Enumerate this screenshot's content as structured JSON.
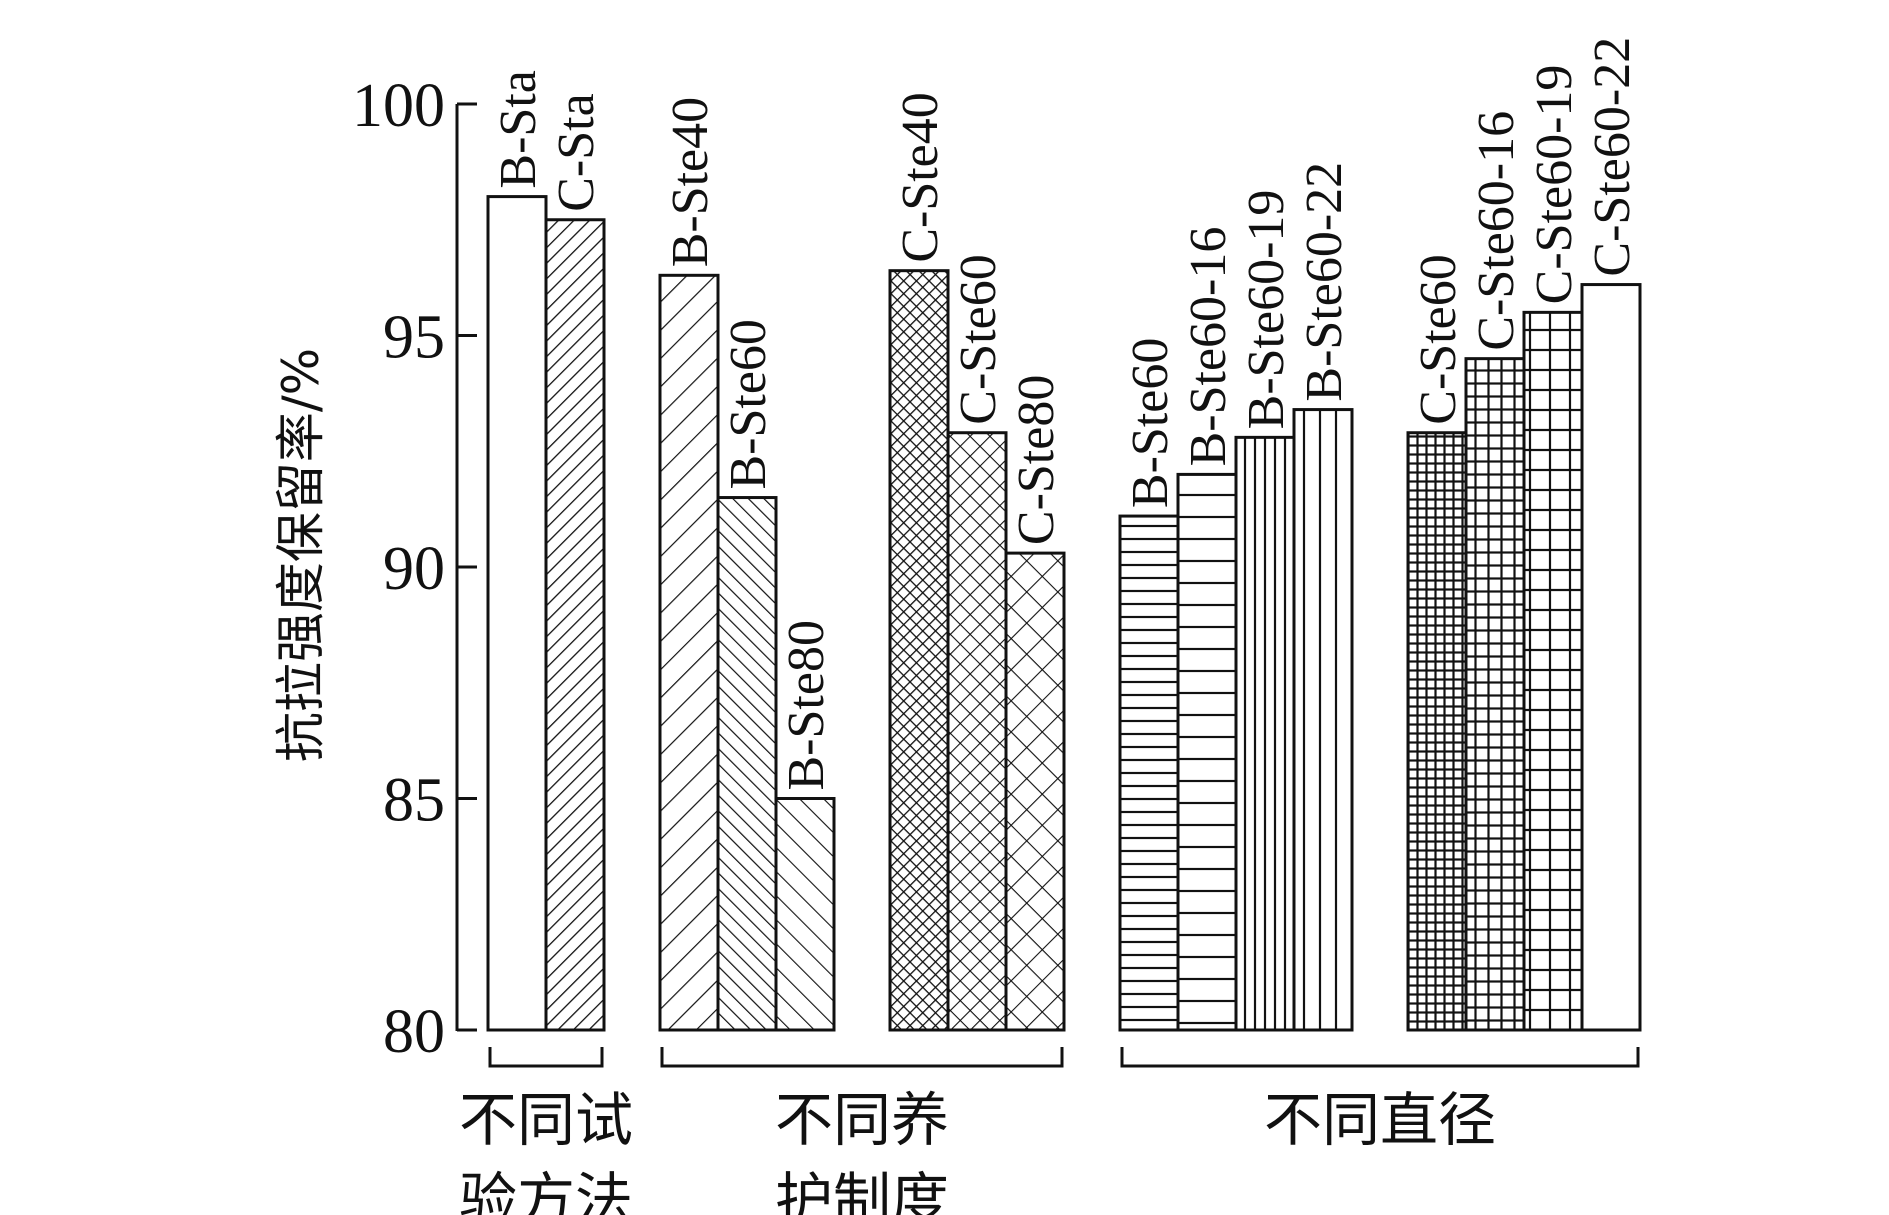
{
  "chart_data": {
    "type": "bar",
    "title": "",
    "xlabel": "",
    "ylabel": "抗拉强度保留率/%",
    "ylim": [
      80,
      100
    ],
    "yticks": [
      80,
      85,
      90,
      95,
      100
    ],
    "grid": false,
    "groups": [
      {
        "label_lines": [
          "不同试",
          "验方法"
        ],
        "bars": [
          {
            "name": "B-Sta",
            "value": 98.0,
            "pattern": "none"
          },
          {
            "name": "C-Sta",
            "value": 97.5,
            "pattern": "diag-dense"
          }
        ]
      },
      {
        "label_lines": [
          "不同养",
          "护制度"
        ],
        "bars": [
          {
            "name": "B-Ste40",
            "value": 96.3,
            "pattern": "diag-fwd"
          },
          {
            "name": "B-Ste60",
            "value": 91.5,
            "pattern": "diag-back-dense"
          },
          {
            "name": "B-Ste80",
            "value": 85.0,
            "pattern": "diag-back"
          },
          {
            "name": "C-Ste40",
            "value": 96.4,
            "pattern": "crosshatch-dense"
          },
          {
            "name": "C-Ste60",
            "value": 92.9,
            "pattern": "crosshatch"
          },
          {
            "name": "C-Ste80",
            "value": 90.3,
            "pattern": "crosshatch-wide"
          }
        ]
      },
      {
        "label_lines": [
          "不同直径"
        ],
        "bars": [
          {
            "name": "B-Ste60",
            "value": 91.1,
            "pattern": "horiz-dense"
          },
          {
            "name": "B-Ste60-16",
            "value": 92.0,
            "pattern": "horiz"
          },
          {
            "name": "B-Ste60-19",
            "value": 92.8,
            "pattern": "vert-dense"
          },
          {
            "name": "B-Ste60-22",
            "value": 93.4,
            "pattern": "vert"
          },
          {
            "name": "C-Ste60",
            "value": 92.9,
            "pattern": "grid-dense"
          },
          {
            "name": "C-Ste60-16",
            "value": 94.5,
            "pattern": "grid"
          },
          {
            "name": "C-Ste60-19",
            "value": 95.5,
            "pattern": "grid-wide"
          },
          {
            "name": "C-Ste60-22",
            "value": 96.1,
            "pattern": "none"
          }
        ]
      }
    ]
  }
}
